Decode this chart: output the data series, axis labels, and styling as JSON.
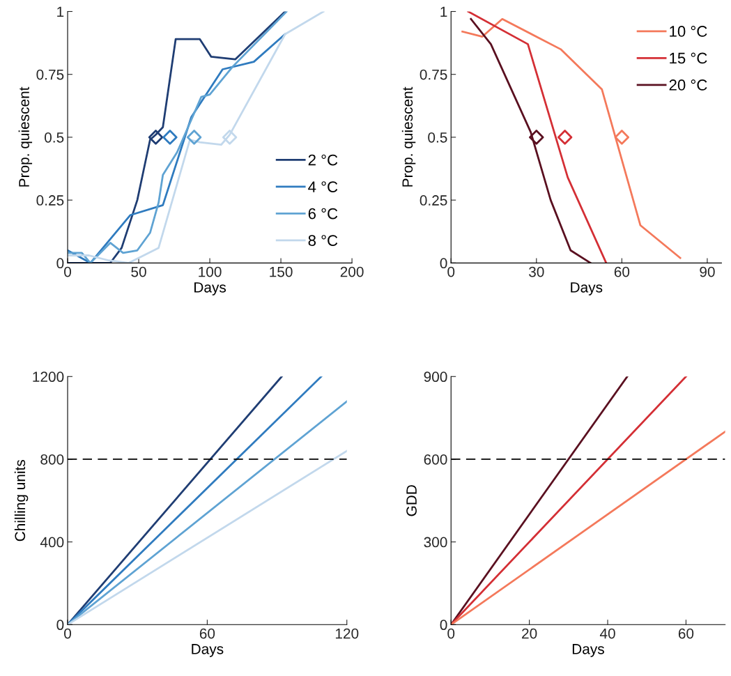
{
  "chart_data": [
    {
      "type": "line",
      "xlabel": "Days",
      "ylabel": "Prop. quiescent",
      "xlim": [
        0,
        200
      ],
      "xticks": [
        0,
        50,
        100,
        150,
        200
      ],
      "ylim": [
        0,
        1
      ],
      "yticks": [
        0,
        0.25,
        0.5,
        0.75,
        1
      ],
      "legend": "lower right",
      "grid": false,
      "series": [
        {
          "name": "2 °C",
          "color": "#1f3d73",
          "x": [
            0,
            30,
            38,
            49,
            58,
            62,
            67,
            76,
            93,
            101,
            118,
            153
          ],
          "values": [
            0,
            0,
            0.06,
            0.25,
            0.49,
            0.51,
            0.54,
            0.89,
            0.89,
            0.82,
            0.81,
            1
          ]
        },
        {
          "name": "4 °C",
          "color": "#2f7bbf",
          "x": [
            0,
            16,
            44,
            67,
            87,
            109,
            131,
            153
          ],
          "values": [
            0.05,
            0,
            0.19,
            0.23,
            0.58,
            0.77,
            0.8,
            0.91
          ]
        },
        {
          "name": "6 °C",
          "color": "#5fa3d3",
          "x": [
            0,
            10,
            16,
            30,
            39,
            49,
            58,
            64,
            67,
            77,
            94,
            100,
            116,
            154
          ],
          "values": [
            0.04,
            0.04,
            0,
            0.08,
            0.04,
            0.05,
            0.12,
            0.24,
            0.35,
            0.44,
            0.66,
            0.67,
            0.78,
            1
          ]
        },
        {
          "name": "8 °C",
          "color": "#c2d8ec",
          "x": [
            0,
            15,
            29,
            43,
            64,
            86,
            93,
            108,
            114,
            153,
            180
          ],
          "values": [
            0.03,
            0.03,
            0.01,
            0,
            0.06,
            0.49,
            0.48,
            0.47,
            0.51,
            0.91,
            1
          ]
        },
        {
          "type": "scatter",
          "marker": "diamond",
          "color": "#1f3d73",
          "x": [
            62
          ],
          "values": [
            0.5
          ]
        },
        {
          "type": "scatter",
          "marker": "diamond",
          "color": "#2f7bbf",
          "x": [
            72
          ],
          "values": [
            0.5
          ]
        },
        {
          "type": "scatter",
          "marker": "diamond",
          "color": "#5fa3d3",
          "x": [
            89
          ],
          "values": [
            0.5
          ]
        },
        {
          "type": "scatter",
          "marker": "diamond",
          "color": "#c2d8ec",
          "x": [
            114
          ],
          "values": [
            0.5
          ]
        }
      ]
    },
    {
      "type": "line",
      "xlabel": "Days",
      "ylabel": "Prop. quiescent",
      "xlim": [
        0,
        95
      ],
      "xticks": [
        0,
        30,
        60,
        90
      ],
      "ylim": [
        0,
        1
      ],
      "yticks": [
        0,
        0.25,
        0.5,
        0.75,
        1
      ],
      "legend": "upper right",
      "grid": false,
      "series": [
        {
          "name": "10 °C",
          "color": "#f4795b",
          "x": [
            4,
            11,
            18,
            38.5,
            53,
            66.5,
            80.5
          ],
          "values": [
            0.92,
            0.9,
            0.97,
            0.85,
            0.69,
            0.15,
            0.02
          ]
        },
        {
          "name": "15 °C",
          "color": "#d42f35",
          "x": [
            6,
            27,
            41,
            54.5
          ],
          "values": [
            1,
            0.87,
            0.34,
            0
          ]
        },
        {
          "name": "20 °C",
          "color": "#5a1020",
          "x": [
            7,
            14,
            28,
            35,
            42,
            49
          ],
          "values": [
            0.97,
            0.87,
            0.52,
            0.25,
            0.05,
            0
          ]
        },
        {
          "type": "scatter",
          "marker": "diamond",
          "color": "#f4795b",
          "x": [
            60
          ],
          "values": [
            0.5
          ]
        },
        {
          "type": "scatter",
          "marker": "diamond",
          "color": "#d42f35",
          "x": [
            40
          ],
          "values": [
            0.5
          ]
        },
        {
          "type": "scatter",
          "marker": "diamond",
          "color": "#5a1020",
          "x": [
            30
          ],
          "values": [
            0.5
          ]
        }
      ]
    },
    {
      "type": "line",
      "xlabel": "Days",
      "ylabel": "Chilling units",
      "xlim": [
        0,
        120
      ],
      "xticks": [
        0,
        60,
        120
      ],
      "ylim": [
        0,
        1200
      ],
      "yticks": [
        0,
        400,
        800,
        1200
      ],
      "grid": false,
      "ref_lines": [
        {
          "axis": "y",
          "value": 800,
          "color": "#000000",
          "line_style": "dashed"
        }
      ],
      "series": [
        {
          "color": "#1f3d73",
          "x": [
            0,
            92
          ],
          "values": [
            0,
            1200
          ]
        },
        {
          "color": "#2f7bbf",
          "x": [
            0,
            109
          ],
          "values": [
            0,
            1200
          ]
        },
        {
          "color": "#5fa3d3",
          "x": [
            0,
            120
          ],
          "values": [
            0,
            1080
          ]
        },
        {
          "color": "#c2d8ec",
          "x": [
            0,
            120
          ],
          "values": [
            0,
            840
          ]
        }
      ]
    },
    {
      "type": "line",
      "xlabel": "Days",
      "ylabel": "GDD",
      "xlim": [
        0,
        70
      ],
      "xticks": [
        0,
        20,
        40,
        60
      ],
      "ylim": [
        0,
        900
      ],
      "yticks": [
        0,
        300,
        600,
        900
      ],
      "grid": false,
      "ref_lines": [
        {
          "axis": "y",
          "value": 600,
          "color": "#000000",
          "line_style": "dashed"
        }
      ],
      "series": [
        {
          "color": "#5a1020",
          "x": [
            0,
            45
          ],
          "values": [
            0,
            900
          ]
        },
        {
          "color": "#d42f35",
          "x": [
            0,
            60
          ],
          "values": [
            0,
            900
          ]
        },
        {
          "color": "#f4795b",
          "x": [
            0,
            70
          ],
          "values": [
            0,
            700
          ]
        }
      ]
    }
  ]
}
